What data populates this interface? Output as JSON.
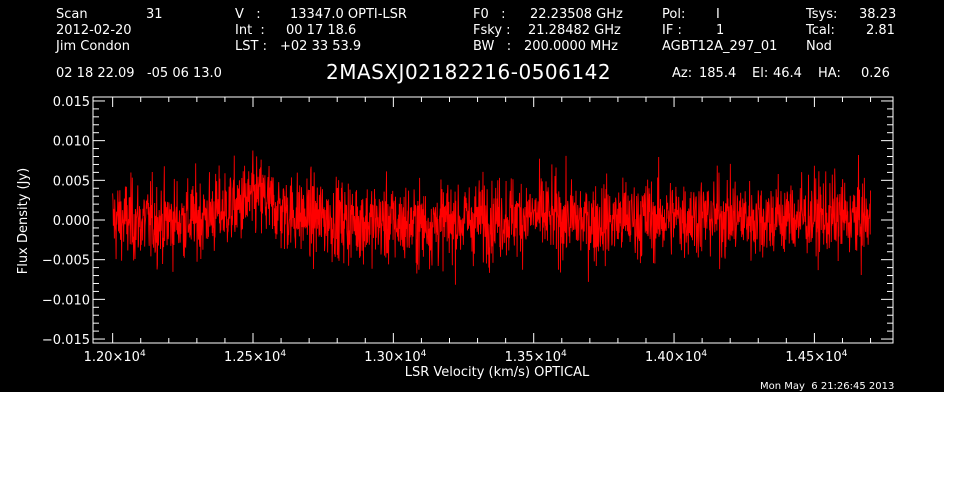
{
  "header": {
    "col1": {
      "scan_label": "Scan",
      "scan_value": "31",
      "date": "2012-02-20",
      "observer": "Jim Condon"
    },
    "col2": {
      "v_label": "V   :",
      "v_value": "13347.0 OPTI-LSR",
      "int_label": "Int  :",
      "int_value": "00 17 18.6",
      "lst_label": "LST :",
      "lst_value": "+02 33 53.9"
    },
    "col3": {
      "f0_label": "F0   :",
      "f0_value": "22.23508 GHz",
      "fsky_label": "Fsky :",
      "fsky_value": "21.28482 GHz",
      "bw_label": "BW   :",
      "bw_value": "200.0000 MHz"
    },
    "col4": {
      "pol_label": "Pol:",
      "pol_value": "I",
      "if_label": "IF :",
      "if_value": "1",
      "project": "AGBT12A_297_01"
    },
    "col5": {
      "tsys_label": "Tsys:",
      "tsys_value": "38.23",
      "tcal_label": "Tcal:",
      "tcal_value": "2.81",
      "mode": "Nod"
    },
    "coords": "02 18 22.09   -05 06 13.0",
    "source": "2MASXJ02182216-0506142",
    "az_label": "Az:",
    "az_value": "185.4",
    "el_label": "El:",
    "el_value": "46.4",
    "ha_label": "HA:",
    "ha_value": "0.26"
  },
  "timestamp": "Mon May  6 21:26:45 2013",
  "chart_data": {
    "type": "line",
    "title": "2MASXJ02182216-0506142",
    "xlabel": "LSR Velocity (km/s) OPTICAL",
    "ylabel": "Flux Density (Jy)",
    "xlim": [
      11930,
      14780
    ],
    "ylim": [
      -0.0155,
      0.0155
    ],
    "x_ticks": [
      {
        "value": 12000,
        "mantissa": "1.20",
        "exp": "4"
      },
      {
        "value": 12500,
        "mantissa": "1.25",
        "exp": "4"
      },
      {
        "value": 13000,
        "mantissa": "1.30",
        "exp": "4"
      },
      {
        "value": 13500,
        "mantissa": "1.35",
        "exp": "4"
      },
      {
        "value": 14000,
        "mantissa": "1.40",
        "exp": "4"
      },
      {
        "value": 14500,
        "mantissa": "1.45",
        "exp": "4"
      }
    ],
    "x_tick_times": "×10",
    "y_ticks": [
      {
        "value": 0.015,
        "label": "0.015"
      },
      {
        "value": 0.01,
        "label": "0.010"
      },
      {
        "value": 0.005,
        "label": "0.005"
      },
      {
        "value": 0.0,
        "label": "0.000"
      },
      {
        "value": -0.005,
        "label": "−0.005"
      },
      {
        "value": -0.01,
        "label": "−0.010"
      },
      {
        "value": -0.015,
        "label": "−0.015"
      }
    ],
    "series": [
      {
        "color": "#ff0000",
        "x_start": 12000,
        "x_end": 14700,
        "noise_rms": 0.0035,
        "envelope": [
          {
            "x": 12000,
            "y": 0.0
          },
          {
            "x": 12150,
            "y": -0.0003
          },
          {
            "x": 12300,
            "y": 0.0002
          },
          {
            "x": 12450,
            "y": 0.0018
          },
          {
            "x": 12520,
            "y": 0.003
          },
          {
            "x": 12600,
            "y": 0.0012
          },
          {
            "x": 12700,
            "y": 0.0003
          },
          {
            "x": 12900,
            "y": -0.0002
          },
          {
            "x": 13100,
            "y": -0.0006
          },
          {
            "x": 13300,
            "y": 0.0001
          },
          {
            "x": 13500,
            "y": 0.0006
          },
          {
            "x": 13700,
            "y": -0.0002
          },
          {
            "x": 13900,
            "y": 0.0002
          },
          {
            "x": 14100,
            "y": 0.0005
          },
          {
            "x": 14300,
            "y": 0.0002
          },
          {
            "x": 14500,
            "y": 0.0004
          },
          {
            "x": 14700,
            "y": 0.0
          }
        ]
      }
    ]
  }
}
